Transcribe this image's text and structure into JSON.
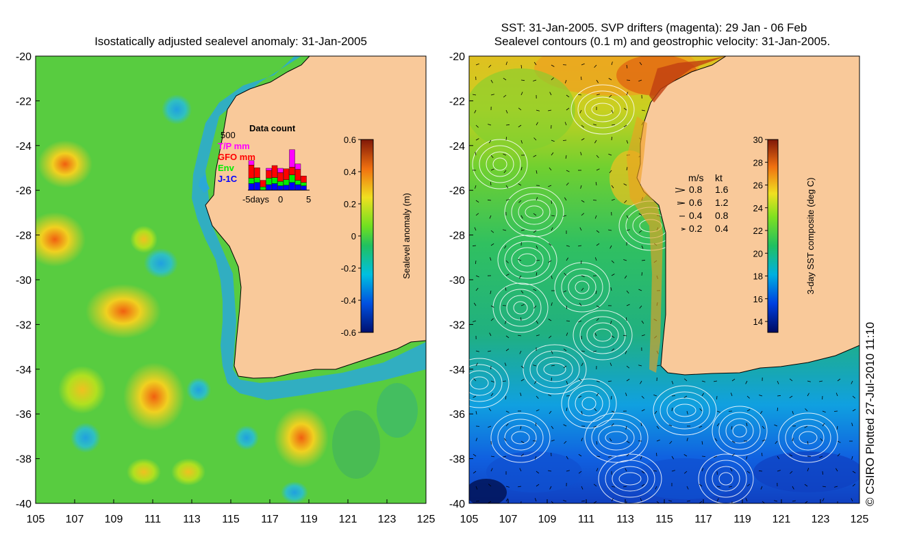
{
  "left_panel": {
    "title": "Isostatically adjusted sealevel anomaly: 31-Jan-2005",
    "y_ticks": [
      "-20",
      "-22",
      "-24",
      "-26",
      "-28",
      "-30",
      "-32",
      "-34",
      "-36",
      "-38",
      "-40"
    ],
    "x_ticks": [
      "105",
      "107",
      "109",
      "111",
      "113",
      "115",
      "117",
      "119",
      "121",
      "123",
      "125"
    ],
    "colorbar": {
      "label": "Sealevel anomaly (m)",
      "ticks": [
        "0.6",
        "0.4",
        "0.2",
        "0",
        "-0.2",
        "-0.4",
        "-0.6"
      ],
      "range": [
        -0.6,
        0.6
      ]
    },
    "inset": {
      "title": "Data count",
      "ymax_label": "500",
      "xlabel_left": "-5days",
      "xlabel_mid": "0",
      "xlabel_right": "5",
      "missions": [
        {
          "name": "T/P mm",
          "color": "#ff00ff"
        },
        {
          "name": "GFO mm",
          "color": "#ff0000"
        },
        {
          "name": "Env",
          "color": "#00ee00"
        },
        {
          "name": "J-1C",
          "color": "#0000ff"
        }
      ],
      "bars": [
        {
          "day": -5,
          "J-1C": 60,
          "Env": 50,
          "GFO mm": 120,
          "T/P mm": 40
        },
        {
          "day": -4,
          "J-1C": 70,
          "Env": 45,
          "GFO mm": 90,
          "T/P mm": 0
        },
        {
          "day": -3,
          "J-1C": 0,
          "Env": 30,
          "GFO mm": 60,
          "T/P mm": 0
        },
        {
          "day": -2,
          "J-1C": 50,
          "Env": 60,
          "GFO mm": 70,
          "T/P mm": 20
        },
        {
          "day": -1,
          "J-1C": 60,
          "Env": 55,
          "GFO mm": 110,
          "T/P mm": 0
        },
        {
          "day": 0,
          "J-1C": 40,
          "Env": 40,
          "GFO mm": 80,
          "T/P mm": 40
        },
        {
          "day": 1,
          "J-1C": 45,
          "Env": 50,
          "GFO mm": 100,
          "T/P mm": 0
        },
        {
          "day": 2,
          "J-1C": 70,
          "Env": 70,
          "GFO mm": 70,
          "T/P mm": 160
        },
        {
          "day": 3,
          "J-1C": 50,
          "Env": 40,
          "GFO mm": 100,
          "T/P mm": 50
        },
        {
          "day": 4,
          "J-1C": 40,
          "Env": 30,
          "GFO mm": 60,
          "T/P mm": 0
        }
      ]
    }
  },
  "right_panel": {
    "title_line1": "SST: 31-Jan-2005. SVP drifters (magenta): 29 Jan - 06 Feb",
    "title_line2": "Sealevel contours (0.1 m) and geostrophic velocity: 31-Jan-2005.",
    "y_ticks": [
      "-20",
      "-22",
      "-24",
      "-26",
      "-28",
      "-30",
      "-32",
      "-34",
      "-36",
      "-38",
      "-40"
    ],
    "x_ticks": [
      "105",
      "107",
      "109",
      "111",
      "113",
      "115",
      "117",
      "119",
      "121",
      "123",
      "125"
    ],
    "colorbar": {
      "label": "3-day SST composite (deg C)",
      "ticks": [
        "30",
        "28",
        "26",
        "24",
        "22",
        "20",
        "18",
        "16",
        "14"
      ],
      "range": [
        13,
        30
      ]
    },
    "speed_legend": {
      "header_ms": "m/s",
      "header_kt": "kt",
      "rows": [
        {
          "ms": "0.8",
          "kt": "1.6"
        },
        {
          "ms": "0.6",
          "kt": "1.2"
        },
        {
          "ms": "0.4",
          "kt": "0.8"
        },
        {
          "ms": "0.2",
          "kt": "0.4"
        }
      ]
    }
  },
  "footer": {
    "credit": "© CSIRO Plotted 27-Jul-2010 11:10"
  },
  "colors": {
    "land": "#f9c99a",
    "ocean_green": "#3cc055",
    "coast": "#000000"
  }
}
